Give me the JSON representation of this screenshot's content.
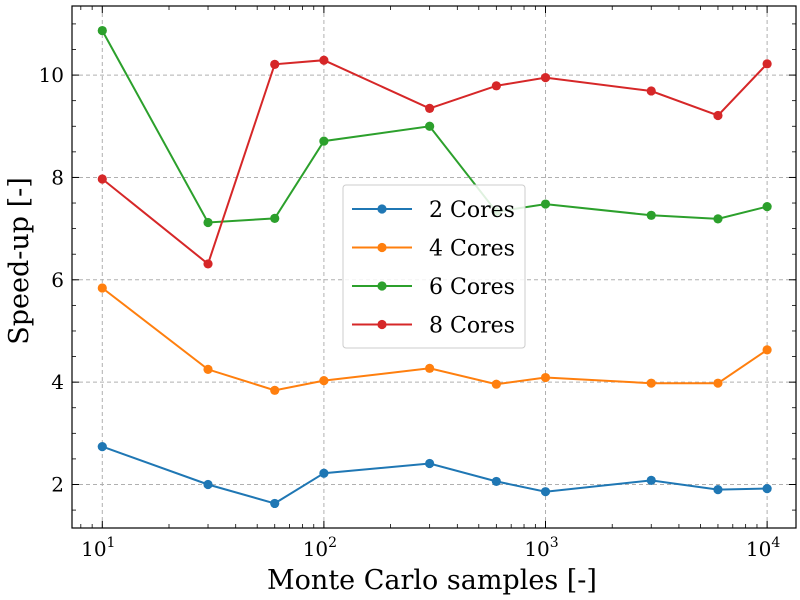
{
  "chart_data": {
    "type": "line",
    "xscale": "log",
    "xlabel": "Monte Carlo samples [-]",
    "ylabel": "Speed-up [-]",
    "xlim": [
      7.3,
      13500
    ],
    "ylim": [
      1.15,
      11.35
    ],
    "grid": true,
    "legend_position": "center",
    "x": [
      10,
      30,
      60,
      100,
      300,
      600,
      1000,
      3000,
      6000,
      10000
    ],
    "xticks": [
      {
        "value": 10,
        "base": "10",
        "exp": "1"
      },
      {
        "value": 100,
        "base": "10",
        "exp": "2"
      },
      {
        "value": 1000,
        "base": "10",
        "exp": "3"
      },
      {
        "value": 10000,
        "base": "10",
        "exp": "4"
      }
    ],
    "yticks": [
      {
        "value": 2,
        "label": "2"
      },
      {
        "value": 4,
        "label": "4"
      },
      {
        "value": 6,
        "label": "6"
      },
      {
        "value": 8,
        "label": "8"
      },
      {
        "value": 10,
        "label": "10"
      }
    ],
    "series": [
      {
        "name": "2 Cores",
        "color": "#1f77b4",
        "values": [
          2.74,
          2.0,
          1.63,
          2.22,
          2.41,
          2.06,
          1.86,
          2.08,
          1.9,
          1.92
        ]
      },
      {
        "name": "4 Cores",
        "color": "#ff7f0e",
        "values": [
          5.84,
          4.25,
          3.84,
          4.03,
          4.27,
          3.96,
          4.09,
          3.98,
          3.98,
          4.63
        ]
      },
      {
        "name": "6 Cores",
        "color": "#2ca02c",
        "values": [
          10.87,
          7.12,
          7.2,
          8.71,
          9.0,
          7.33,
          7.48,
          7.26,
          7.19,
          7.43
        ]
      },
      {
        "name": "8 Cores",
        "color": "#d62728",
        "values": [
          7.97,
          6.31,
          10.21,
          10.29,
          9.35,
          9.79,
          9.95,
          9.69,
          9.21,
          10.22
        ]
      }
    ]
  }
}
